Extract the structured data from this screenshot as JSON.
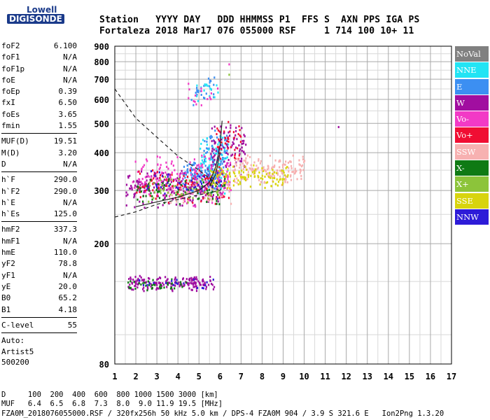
{
  "logo": {
    "top": "Lowell",
    "bottom": "DIGISONDE"
  },
  "header": {
    "row1": "Station   YYYY DAY   DDD HHMMSS P1  FFS S  AXN PPS IGA PS",
    "row2": "Fortaleza 2018 Mar17 076 055000 RSF     1 714 100 10+ 11"
  },
  "parameters": [
    {
      "group": [
        {
          "name": "foF2",
          "value": "6.100"
        },
        {
          "name": "foF1",
          "value": "N/A"
        },
        {
          "name": "foF1p",
          "value": "N/A"
        },
        {
          "name": "foE",
          "value": "N/A"
        },
        {
          "name": "foEp",
          "value": "0.39"
        },
        {
          "name": "fxI",
          "value": "6.50"
        },
        {
          "name": "foEs",
          "value": "3.65"
        },
        {
          "name": "fmin",
          "value": "1.55"
        }
      ]
    },
    {
      "group": [
        {
          "name": "MUF(D)",
          "value": "19.51"
        },
        {
          "name": "M(D)",
          "value": "3.20"
        },
        {
          "name": "D",
          "value": "N/A"
        }
      ]
    },
    {
      "group": [
        {
          "name": "h`F",
          "value": "290.0"
        },
        {
          "name": "h`F2",
          "value": "290.0"
        },
        {
          "name": "h`E",
          "value": "N/A"
        },
        {
          "name": "h`Es",
          "value": "125.0"
        }
      ]
    },
    {
      "group": [
        {
          "name": "hmF2",
          "value": "337.3"
        },
        {
          "name": "hmF1",
          "value": "N/A"
        },
        {
          "name": "hmE",
          "value": "110.0"
        },
        {
          "name": "yF2",
          "value": "78.8"
        },
        {
          "name": "yF1",
          "value": "N/A"
        },
        {
          "name": "yE",
          "value": "20.0"
        },
        {
          "name": "B0",
          "value": "65.2"
        },
        {
          "name": "B1",
          "value": "4.18"
        }
      ]
    },
    {
      "group": [
        {
          "name": "C-level",
          "value": "55"
        }
      ]
    }
  ],
  "autoscaling": {
    "line1": "Auto:",
    "line2": "Artist5",
    "line3": "500200"
  },
  "legend": [
    {
      "label": "NoVal",
      "color": "#808080"
    },
    {
      "label": "NNE",
      "color": "#22e4f4"
    },
    {
      "label": "E",
      "color": "#3c8ff2"
    },
    {
      "label": "W",
      "color": "#a10ea0"
    },
    {
      "label": "Vo-",
      "color": "#f23ac6"
    },
    {
      "label": "Vo+",
      "color": "#f00e33"
    },
    {
      "label": "SSW",
      "color": "#f7b1b1"
    },
    {
      "label": "X-",
      "color": "#0f7a14"
    },
    {
      "label": "X+",
      "color": "#8cc43a"
    },
    {
      "label": "SSE",
      "color": "#d8d40e"
    },
    {
      "label": "NNW",
      "color": "#2d1bd8"
    }
  ],
  "bottom": {
    "d_row": "D     100  200  400  600  800 1000 1500 3000 [km]",
    "muf_row": "MUF   6.4  6.5  6.8  7.3  8.0  9.0 11.9 19.5 [MHz]",
    "file_row": "FZA0M_2018076055000.RSF / 320fx256h 50 kHz 5.0 km / DPS-4 FZA0M 904 / 3.9 S 321.6 E   Ion2Png 1.3.20"
  },
  "chart_data": {
    "type": "scatter",
    "title": "",
    "xlabel": "",
    "ylabel": "",
    "xlim": [
      1,
      17
    ],
    "ylim": [
      80,
      900
    ],
    "y_scale": "log",
    "grid": true,
    "x_ticks": [
      1,
      2,
      3,
      4,
      5,
      6,
      7,
      8,
      9,
      10,
      11,
      12,
      13,
      14,
      15,
      16,
      17
    ],
    "y_ticks": [
      80,
      200,
      300,
      400,
      500,
      600,
      700,
      800,
      900
    ],
    "series": [
      {
        "name": "E",
        "color": "#3c8ff2",
        "clusters": [
          {
            "x": [
              4.2,
              6.0
            ],
            "y": [
              290,
              390
            ],
            "n": 150
          },
          {
            "x": [
              5.2,
              6.3
            ],
            "y": [
              330,
              480
            ],
            "n": 70
          },
          {
            "x": [
              4.6,
              5.8
            ],
            "y": [
              560,
              740
            ],
            "n": 25
          }
        ]
      },
      {
        "name": "NNE",
        "color": "#22e4f4",
        "clusters": [
          {
            "x": [
              5.0,
              6.4
            ],
            "y": [
              290,
              470
            ],
            "n": 70
          },
          {
            "x": [
              4.8,
              5.9
            ],
            "y": [
              580,
              720
            ],
            "n": 15
          }
        ]
      },
      {
        "name": "W",
        "color": "#a10ea0",
        "clusters": [
          {
            "x": [
              1.5,
              6.2
            ],
            "y": [
              260,
              360
            ],
            "n": 200
          },
          {
            "x": [
              5.5,
              7.2
            ],
            "y": [
              330,
              510
            ],
            "n": 90
          },
          {
            "x": [
              1.6,
              5.7
            ],
            "y": [
              140,
              158
            ],
            "n": 170
          }
        ]
      },
      {
        "name": "Vo-",
        "color": "#f23ac6",
        "clusters": [
          {
            "x": [
              1.8,
              6.5
            ],
            "y": [
              260,
              400
            ],
            "n": 180
          },
          {
            "x": [
              4.2,
              5.9
            ],
            "y": [
              560,
              700
            ],
            "n": 15
          }
        ]
      },
      {
        "name": "Vo+",
        "color": "#f00e33",
        "clusters": [
          {
            "x": [
              2.0,
              6.4
            ],
            "y": [
              265,
              360
            ],
            "n": 100
          },
          {
            "x": [
              5.8,
              7.0
            ],
            "y": [
              350,
              520
            ],
            "n": 40
          }
        ]
      },
      {
        "name": "SSW",
        "color": "#f7b1b1",
        "clusters": [
          {
            "x": [
              6.5,
              10.0
            ],
            "y": [
              310,
              400
            ],
            "n": 160
          },
          {
            "x": [
              3.5,
              6.5
            ],
            "y": [
              270,
              330
            ],
            "n": 60
          }
        ]
      },
      {
        "name": "X-",
        "color": "#0f7a14",
        "clusters": [
          {
            "x": [
              2.0,
              6.2
            ],
            "y": [
              265,
              340
            ],
            "n": 70
          },
          {
            "x": [
              1.6,
              4.5
            ],
            "y": [
              140,
              155
            ],
            "n": 40
          }
        ]
      },
      {
        "name": "X+",
        "color": "#8cc43a",
        "clusters": [
          {
            "x": [
              2.5,
              6.0
            ],
            "y": [
              270,
              340
            ],
            "n": 50
          }
        ]
      },
      {
        "name": "SSE",
        "color": "#d8d40e",
        "clusters": [
          {
            "x": [
              5.5,
              9.2
            ],
            "y": [
              300,
              370
            ],
            "n": 120
          }
        ]
      },
      {
        "name": "NNW",
        "color": "#2d1bd8",
        "clusters": [
          {
            "x": [
              2.5,
              6.2
            ],
            "y": [
              280,
              360
            ],
            "n": 40
          },
          {
            "x": [
              2.0,
              5.7
            ],
            "y": [
              142,
              156
            ],
            "n": 20
          }
        ]
      }
    ],
    "curves": [
      {
        "name": "",
        "style": "dashed",
        "x": [
          1,
          2,
          3,
          4,
          5,
          5.6,
          6.0
        ],
        "y": [
          650,
          520,
          450,
          390,
          350,
          325,
          310
        ]
      },
      {
        "name": "",
        "style": "dashed",
        "x": [
          1,
          2,
          3,
          4,
          5,
          6,
          6.1
        ],
        "y": [
          245,
          255,
          270,
          280,
          290,
          300,
          310
        ]
      },
      {
        "name": "",
        "style": "solid",
        "x": [
          2.0,
          3.0,
          4.0,
          5.0,
          5.5,
          5.8,
          6.0,
          6.1
        ],
        "y": [
          265,
          275,
          285,
          300,
          320,
          360,
          420,
          510
        ]
      },
      {
        "name": "",
        "style": "solid",
        "x": [
          5.5,
          5.8,
          6.0
        ],
        "y": [
          310,
          340,
          400
        ]
      }
    ]
  }
}
